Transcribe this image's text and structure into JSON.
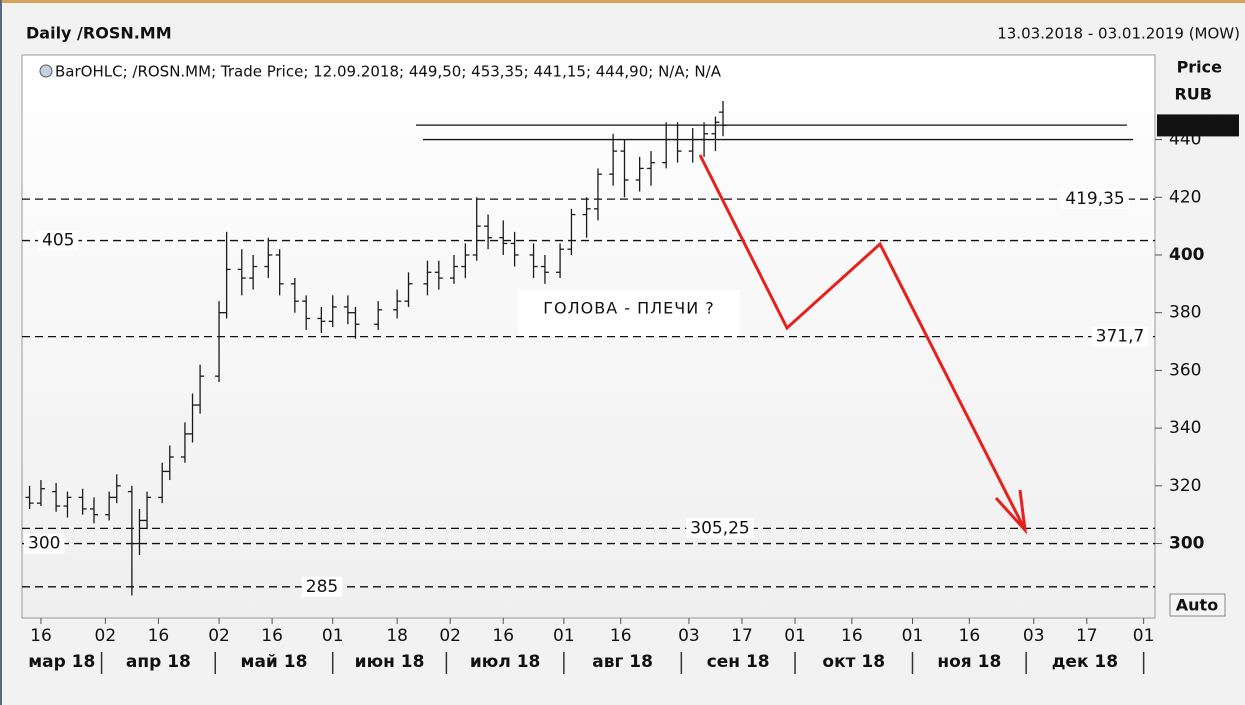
{
  "chart_data": {
    "type": "ohlc",
    "title": "Daily /ROSN.MM",
    "date_range": "13.03.2018 - 03.01.2019 (MOW)",
    "legend": "BarOHLC; /ROSN.MM; Trade Price; 12.09.2018; 449,50; 453,35; 441,15; 444,90; N/A; N/A",
    "y_label": "Price",
    "y_unit": "RUB",
    "auto_button": "Auto",
    "annotation": "ГОЛОВА - ПЛЕЧИ ?",
    "ylim": [
      274.2,
      469.3
    ],
    "yticks": [
      300,
      320,
      340,
      360,
      380,
      400,
      420,
      440
    ],
    "xlim": [
      "2018-03-11",
      "2019-01-04"
    ],
    "xticks": [
      {
        "value": "2018-03-16",
        "label": "16"
      },
      {
        "value": "2018-04-02",
        "label": "02"
      },
      {
        "value": "2018-04-16",
        "label": "16"
      },
      {
        "value": "2018-05-02",
        "label": "02"
      },
      {
        "value": "2018-05-16",
        "label": "16"
      },
      {
        "value": "2018-06-01",
        "label": "01"
      },
      {
        "value": "2018-06-18",
        "label": "18"
      },
      {
        "value": "2018-07-02",
        "label": "02"
      },
      {
        "value": "2018-07-16",
        "label": "16"
      },
      {
        "value": "2018-08-01",
        "label": "01"
      },
      {
        "value": "2018-08-16",
        "label": "16"
      },
      {
        "value": "2018-09-03",
        "label": "03"
      },
      {
        "value": "2018-09-17",
        "label": "17"
      },
      {
        "value": "2018-10-01",
        "label": "01"
      },
      {
        "value": "2018-10-16",
        "label": "16"
      },
      {
        "value": "2018-11-01",
        "label": "01"
      },
      {
        "value": "2018-11-16",
        "label": "16"
      },
      {
        "value": "2018-12-03",
        "label": "03"
      },
      {
        "value": "2018-12-17",
        "label": "17"
      },
      {
        "value": "2019-01-01",
        "label": "01"
      }
    ],
    "months": [
      "мар 18",
      "апр 18",
      "май 18",
      "июн 18",
      "июл 18",
      "авг 18",
      "сен 18",
      "окт 18",
      "ноя 18",
      "дек 18"
    ],
    "levels": [
      {
        "value": 419.35,
        "label": "419,35"
      },
      {
        "value": 405,
        "label": "405"
      },
      {
        "value": 371.7,
        "label": "371,7"
      },
      {
        "value": 305.25,
        "label": "305,25"
      },
      {
        "value": 300,
        "label": "300"
      },
      {
        "value": 285,
        "label": "285"
      }
    ],
    "resistance": [
      445,
      440
    ],
    "last_price": {
      "value": 444.9,
      "label": "444,90"
    },
    "color": "#1a1a1a",
    "x": [
      "2018-03-13",
      "2018-03-16",
      "2018-03-20",
      "2018-03-23",
      "2018-03-27",
      "2018-03-30",
      "2018-04-03",
      "2018-04-05",
      "2018-04-09",
      "2018-04-11",
      "2018-04-13",
      "2018-04-17",
      "2018-04-19",
      "2018-04-23",
      "2018-04-25",
      "2018-04-27",
      "2018-05-02",
      "2018-05-04",
      "2018-05-08",
      "2018-05-11",
      "2018-05-15",
      "2018-05-18",
      "2018-05-22",
      "2018-05-25",
      "2018-05-29",
      "2018-06-01",
      "2018-06-05",
      "2018-06-07",
      "2018-06-13",
      "2018-06-18",
      "2018-06-21",
      "2018-06-26",
      "2018-06-29",
      "2018-07-03",
      "2018-07-06",
      "2018-07-09",
      "2018-07-12",
      "2018-07-16",
      "2018-07-19",
      "2018-07-24",
      "2018-07-27",
      "2018-07-31",
      "2018-08-03",
      "2018-08-07",
      "2018-08-10",
      "2018-08-14",
      "2018-08-17",
      "2018-08-21",
      "2018-08-24",
      "2018-08-28",
      "2018-08-31",
      "2018-09-04",
      "2018-09-07",
      "2018-09-10",
      "2018-09-12"
    ],
    "open": [
      316,
      314,
      318,
      313,
      316,
      312,
      310,
      316,
      318,
      300,
      308,
      316,
      325,
      330,
      338,
      348,
      358,
      380,
      395,
      392,
      396,
      400,
      390,
      384,
      378,
      377,
      382,
      380,
      376,
      381,
      384,
      390,
      394,
      392,
      396,
      400,
      410,
      406,
      404,
      400,
      396,
      394,
      402,
      414,
      416,
      428,
      436,
      426,
      430,
      432,
      440,
      436,
      440,
      442,
      449.5
    ],
    "high": [
      320,
      322,
      321,
      318,
      319,
      316,
      318,
      324,
      320,
      312,
      318,
      328,
      334,
      342,
      352,
      362,
      384,
      408,
      402,
      400,
      406,
      402,
      392,
      386,
      382,
      386,
      386,
      382,
      384,
      388,
      394,
      398,
      398,
      400,
      404,
      420,
      414,
      412,
      408,
      404,
      400,
      404,
      416,
      420,
      430,
      442,
      440,
      434,
      436,
      446,
      446,
      444,
      446,
      448,
      453.35
    ],
    "low": [
      312,
      313,
      311,
      309,
      310,
      307,
      308,
      314,
      282,
      296,
      305,
      314,
      322,
      328,
      335,
      345,
      356,
      378,
      386,
      388,
      392,
      386,
      380,
      374,
      373,
      375,
      376,
      371,
      374,
      378,
      382,
      386,
      388,
      390,
      392,
      398,
      402,
      400,
      396,
      392,
      390,
      392,
      400,
      406,
      412,
      424,
      420,
      422,
      424,
      430,
      432,
      432,
      434,
      436,
      441.15
    ],
    "close": [
      314,
      319,
      313,
      316,
      312,
      310,
      316,
      320,
      300,
      308,
      316,
      325,
      330,
      338,
      348,
      358,
      380,
      395,
      392,
      396,
      400,
      390,
      384,
      378,
      377,
      382,
      380,
      376,
      381,
      384,
      390,
      394,
      392,
      396,
      400,
      410,
      406,
      404,
      400,
      396,
      394,
      402,
      414,
      416,
      428,
      436,
      426,
      430,
      432,
      440,
      436,
      440,
      442,
      446,
      444.9
    ]
  }
}
